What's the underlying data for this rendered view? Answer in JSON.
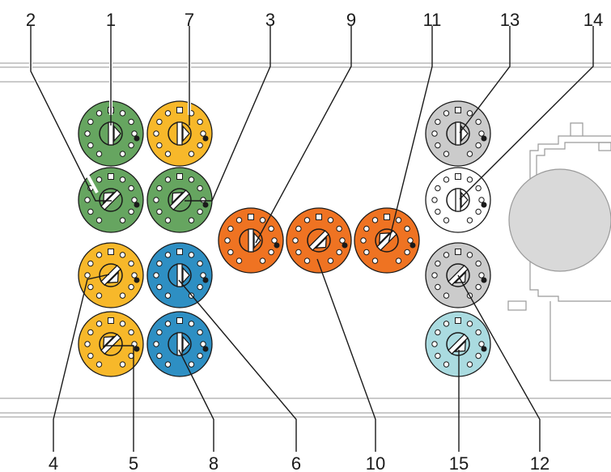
{
  "labels": {
    "top": [
      "2",
      "1",
      "7",
      "3",
      "9",
      "11",
      "13",
      "14"
    ],
    "bottom": [
      "4",
      "5",
      "8",
      "6",
      "10",
      "15",
      "12"
    ]
  },
  "colors": {
    "green": "#66a560",
    "yellow": "#f7b82a",
    "blue": "#2e8fc3",
    "orange": "#ef7322",
    "lightgray": "#cbcbcb",
    "white": "#ffffff",
    "lightblue": "#aadbe0",
    "circle_gray": "#d9d9d9",
    "rail": "#b9b9b9"
  },
  "switches": [
    {
      "id": "1",
      "color": "green",
      "pointer": "up"
    },
    {
      "id": "7",
      "color": "yellow",
      "pointer": "up"
    },
    {
      "id": "2",
      "color": "green",
      "pointer": "down-left"
    },
    {
      "id": "3",
      "color": "green",
      "pointer": "down-left"
    },
    {
      "id": "4",
      "color": "yellow",
      "pointer": "up-right"
    },
    {
      "id": "6",
      "color": "blue",
      "pointer": "up"
    },
    {
      "id": "5",
      "color": "yellow",
      "pointer": "down-left"
    },
    {
      "id": "8",
      "color": "blue",
      "pointer": "up"
    },
    {
      "id": "9",
      "color": "orange",
      "pointer": "up"
    },
    {
      "id": "10",
      "color": "orange",
      "pointer": "up-right"
    },
    {
      "id": "11",
      "color": "orange",
      "pointer": "down-left"
    },
    {
      "id": "13",
      "color": "lightgray",
      "pointer": "up"
    },
    {
      "id": "14",
      "color": "white",
      "pointer": "up"
    },
    {
      "id": "12",
      "color": "lightgray",
      "pointer": "up-right"
    },
    {
      "id": "15",
      "color": "lightblue",
      "pointer": "up-right"
    }
  ]
}
